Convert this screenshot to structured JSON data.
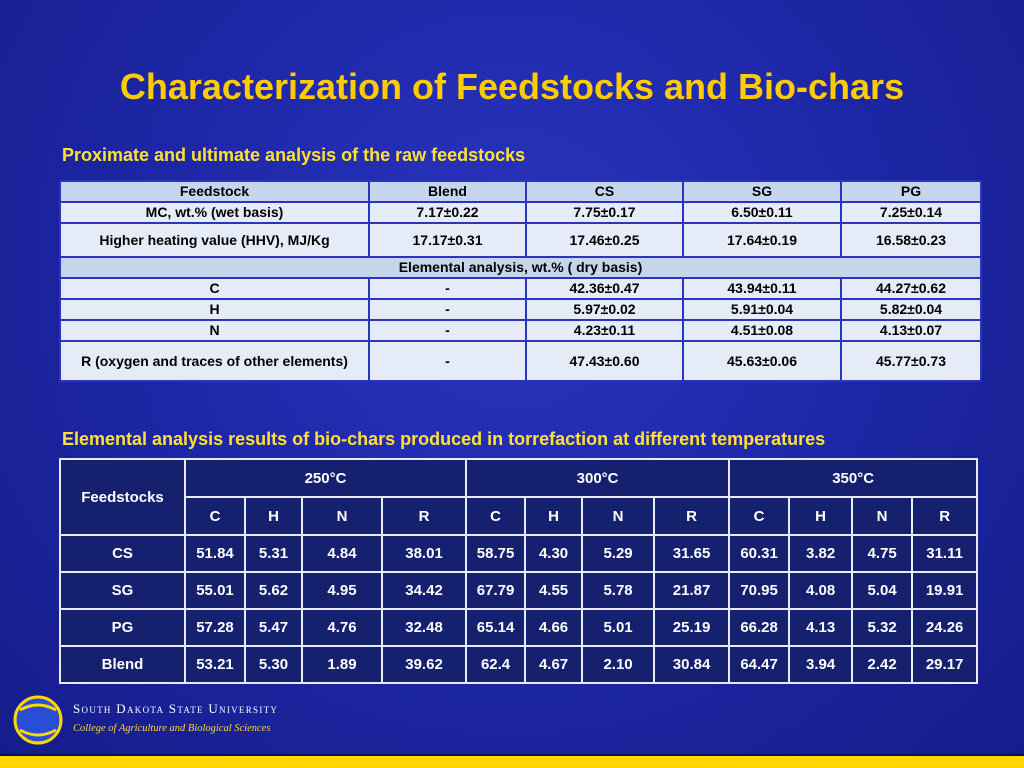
{
  "title": "Characterization of Feedstocks and Bio-chars",
  "table1": {
    "subtitle": "Proximate and ultimate analysis of the raw feedstocks",
    "header": [
      "Feedstock",
      "Blend",
      "CS",
      "SG",
      "PG"
    ],
    "mc": [
      "MC, wt.% (wet basis)",
      "7.17±0.22",
      "7.75±0.17",
      "6.50±0.11",
      "7.25±0.14"
    ],
    "hhv": [
      "Higher heating value (HHV), MJ/Kg",
      "17.17±0.31",
      "17.46±0.25",
      "17.64±0.19",
      "16.58±0.23"
    ],
    "elemental_label": "Elemental analysis, wt.% ( dry basis)",
    "c": [
      "C",
      "-",
      "42.36±0.47",
      "43.94±0.11",
      "44.27±0.62"
    ],
    "h": [
      "H",
      "-",
      "5.97±0.02",
      "5.91±0.04",
      "5.82±0.04"
    ],
    "n": [
      "N",
      "-",
      "4.23±0.11",
      "4.51±0.08",
      "4.13±0.07"
    ],
    "r": [
      "R (oxygen and traces of other elements)",
      "-",
      "47.43±0.60",
      "45.63±0.06",
      "45.77±0.73"
    ]
  },
  "table2": {
    "subtitle": "Elemental analysis results of bio-chars produced in torrefaction at different temperatures",
    "feedstocks_label": "Feedstocks",
    "temps": [
      "250°C",
      "300°C",
      "350°C"
    ],
    "elements": [
      "C",
      "H",
      "N",
      "R"
    ],
    "rows": [
      {
        "name": "CS",
        "values": [
          "51.84",
          "5.31",
          "4.84",
          "38.01",
          "58.75",
          "4.30",
          "5.29",
          "31.65",
          "60.31",
          "3.82",
          "4.75",
          "31.11"
        ]
      },
      {
        "name": "SG",
        "values": [
          "55.01",
          "5.62",
          "4.95",
          "34.42",
          "67.79",
          "4.55",
          "5.78",
          "21.87",
          "70.95",
          "4.08",
          "5.04",
          "19.91"
        ]
      },
      {
        "name": "PG",
        "values": [
          "57.28",
          "5.47",
          "4.76",
          "32.48",
          "65.14",
          "4.66",
          "5.01",
          "25.19",
          "66.28",
          "4.13",
          "5.32",
          "24.26"
        ]
      },
      {
        "name": "Blend",
        "values": [
          "53.21",
          "5.30",
          "1.89",
          "39.62",
          "62.4",
          "4.67",
          "2.10",
          "30.84",
          "64.47",
          "3.94",
          "2.42",
          "29.17"
        ]
      }
    ]
  },
  "footer": {
    "logo_letters": "SD",
    "university": "South Dakota State University",
    "college": "College of Agriculture and Biological Sciences"
  },
  "colors": {
    "background": "#1e28a8",
    "title": "#ffcc00",
    "subtitle": "#ffe033",
    "table1_header": "#c6d5ee",
    "table1_body": "#e6ecf7",
    "table2_cell": "#15206e",
    "stripe": "#ffd600"
  }
}
